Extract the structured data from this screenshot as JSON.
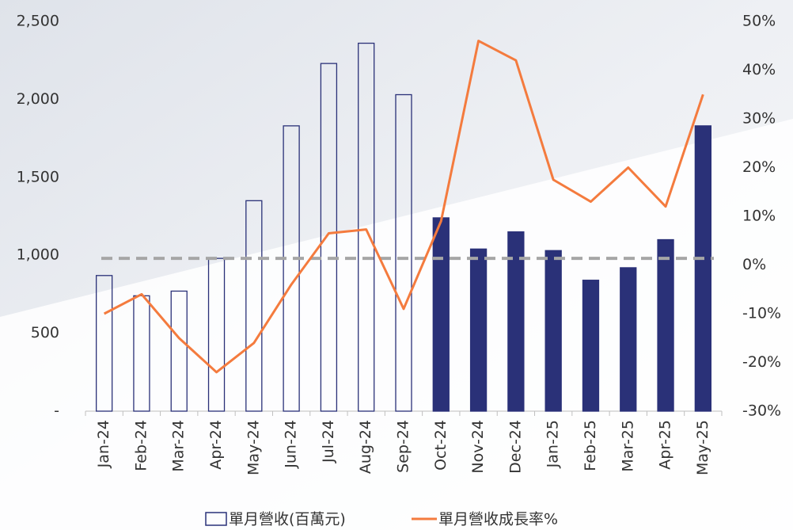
{
  "chart_data": {
    "type": "bar-line",
    "categories": [
      "Jan-24",
      "Feb-24",
      "Mar-24",
      "Apr-24",
      "May-24",
      "Jun-24",
      "Jul-24",
      "Aug-24",
      "Sep-24",
      "Oct-24",
      "Nov-24",
      "Dec-24",
      "Jan-25",
      "Feb-25",
      "Mar-25",
      "Apr-25",
      "May-25"
    ],
    "series": [
      {
        "name": "單月營收(百萬元)",
        "type": "bar",
        "color": "#2a3178",
        "fill_colors": [
          "none",
          "none",
          "none",
          "none",
          "none",
          "none",
          "none",
          "none",
          "none",
          "#2a3178",
          "#2a3178",
          "#2a3178",
          "#2a3178",
          "#2a3178",
          "#2a3178",
          "#2a3178",
          "#2a3178"
        ],
        "values": [
          870,
          740,
          770,
          980,
          1350,
          1830,
          2230,
          2360,
          2030,
          1240,
          1040,
          1150,
          1030,
          840,
          920,
          1100,
          1830
        ]
      },
      {
        "name": "單月營收成長率%",
        "type": "line",
        "axis": "y2",
        "color": "#f47b3e",
        "values": [
          -10,
          -6,
          -15,
          -22,
          -16,
          -4,
          6.5,
          7.3,
          -9,
          9,
          46,
          42,
          17.5,
          13,
          20,
          12,
          35
        ]
      }
    ],
    "ylim": [
      0,
      2500
    ],
    "yticks": [
      {
        "value": 0,
        "label": "-"
      },
      500,
      {
        "value": 1000,
        "label": "1,000"
      },
      {
        "value": 1500,
        "label": "1,500"
      },
      {
        "value": 2000,
        "label": "2,000"
      },
      {
        "value": 2500,
        "label": "2,500"
      }
    ],
    "y2lim": [
      -30,
      50
    ],
    "y2ticks": [
      {
        "value": -30,
        "label": "-30%"
      },
      {
        "value": -20,
        "label": "-20%"
      },
      {
        "value": -10,
        "label": "-10%"
      },
      {
        "value": 0,
        "label": "0%"
      },
      {
        "value": 10,
        "label": "10%"
      },
      {
        "value": 20,
        "label": "20%"
      },
      {
        "value": 30,
        "label": "30%"
      },
      {
        "value": 40,
        "label": "40%"
      },
      {
        "value": 50,
        "label": "50%"
      }
    ],
    "reference_line": {
      "value": 980,
      "color": "#a6a6a6"
    }
  }
}
